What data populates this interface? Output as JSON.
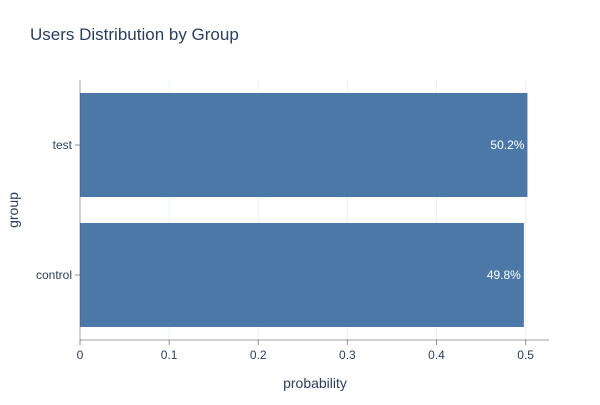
{
  "chart_data": {
    "type": "bar",
    "orientation": "horizontal",
    "title": "Users Distribution by Group",
    "xlabel": "probability",
    "ylabel": "group",
    "categories": [
      "test",
      "control"
    ],
    "values": [
      0.502,
      0.498
    ],
    "data_labels": [
      "50.2%",
      "49.8%"
    ],
    "xlim": [
      0,
      0.5262
    ],
    "x_ticks": [
      0,
      0.1,
      0.2,
      0.3,
      0.4,
      0.5
    ],
    "x_tick_labels": [
      "0",
      "0.1",
      "0.2",
      "0.3",
      "0.4",
      "0.5"
    ],
    "grid": true,
    "legend": "none",
    "bar_color": "#4c78a8"
  }
}
